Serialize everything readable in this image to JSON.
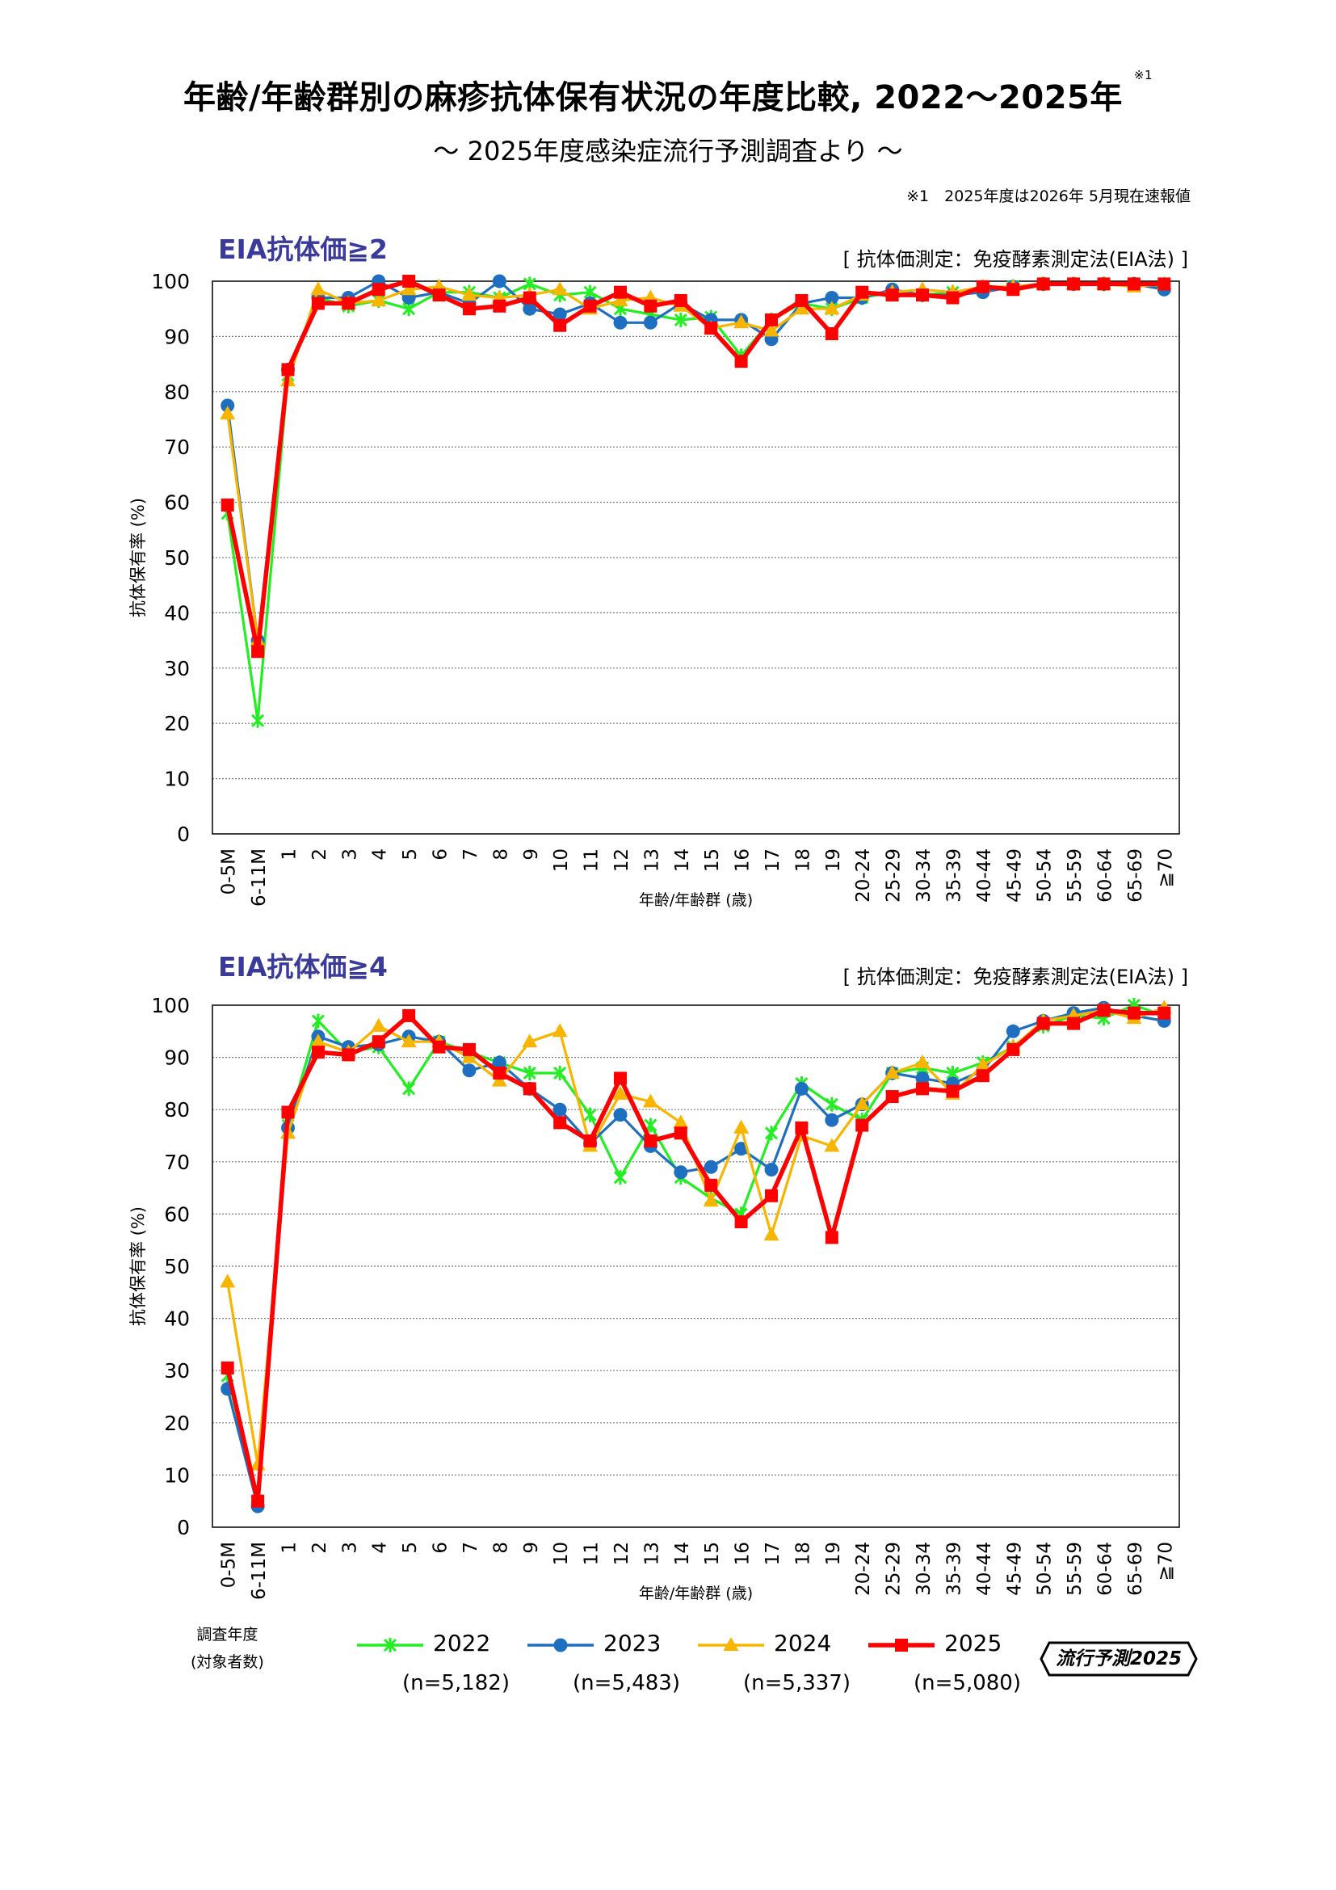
{
  "header": {
    "title": "年齢/年齢群別の麻疹抗体保有状況の年度比較, 2022～2025年",
    "title_note_mark": "※1",
    "subtitle": "～ 2025年度感染症流行予測調査より ～",
    "footnote": "※1　2025年度は2026年 5月現在速報値"
  },
  "legend": {
    "caption_line1": "調査年度",
    "caption_line2": "(対象者数)",
    "items": [
      {
        "name": "2022",
        "n": "(n=5,182)",
        "color": "#22ee22",
        "marker": "asterisk"
      },
      {
        "name": "2023",
        "n": "(n=5,483)",
        "color": "#1f6fc0",
        "marker": "circle"
      },
      {
        "name": "2024",
        "n": "(n=5,337)",
        "color": "#f7b500",
        "marker": "triangle"
      },
      {
        "name": "2025",
        "n": "(n=5,080)",
        "color": "#ff0000",
        "marker": "square"
      }
    ]
  },
  "logo": {
    "text": "流行予測2025"
  },
  "chart_data": [
    {
      "type": "line",
      "title": "EIA抗体価≧2",
      "method_note": "[ 抗体価測定：免疫酵素測定法(EIA法) ]",
      "xlabel": "年齢/年齢群 (歳)",
      "ylabel": "抗体保有率 (%)",
      "ylim": [
        0,
        100
      ],
      "yticks": [
        "0",
        "10",
        "20",
        "30",
        "40",
        "50",
        "60",
        "70",
        "80",
        "90",
        "100"
      ],
      "grid": "horizontal dotted",
      "categories": [
        "0-5M",
        "6-11M",
        "1",
        "2",
        "3",
        "4",
        "5",
        "6",
        "7",
        "8",
        "9",
        "10",
        "11",
        "12",
        "13",
        "14",
        "15",
        "16",
        "17",
        "18",
        "19",
        "20-24",
        "25-29",
        "30-34",
        "35-39",
        "40-44",
        "45-49",
        "50-54",
        "55-59",
        "60-64",
        "65-69",
        "≧70"
      ],
      "series": [
        {
          "name": "2022",
          "values": [
            58,
            20.5,
            83,
            97,
            95.5,
            96.5,
            95,
            98,
            98,
            97,
            99.5,
            97.5,
            98,
            95,
            94,
            93,
            93.5,
            86.5,
            93,
            96,
            95,
            97,
            98,
            97.5,
            98,
            98.5,
            99,
            99.5,
            99.5,
            99.5,
            99.5,
            99
          ]
        },
        {
          "name": "2023",
          "values": [
            77.5,
            35,
            84,
            97,
            97,
            100,
            97,
            98,
            96,
            100,
            95,
            94,
            96,
            92.5,
            92.5,
            96,
            93,
            93,
            89.5,
            96,
            97,
            97,
            98.5,
            97.5,
            97.5,
            98,
            99,
            99.5,
            99.5,
            99.5,
            99.5,
            98.5
          ]
        },
        {
          "name": "2024",
          "values": [
            76,
            35,
            82,
            98.5,
            96,
            96.5,
            98.5,
            99,
            97.5,
            97,
            97.5,
            98.5,
            95,
            96.5,
            97,
            95.5,
            91.5,
            92.5,
            91,
            95,
            95,
            97.5,
            98,
            98.5,
            98,
            99,
            99,
            99.5,
            99.5,
            99.5,
            99,
            99.5
          ]
        },
        {
          "name": "2025",
          "values": [
            59.5,
            33,
            84,
            96,
            96,
            98.5,
            100,
            97.5,
            95,
            95.5,
            97,
            92,
            95.5,
            98,
            95.5,
            96.5,
            91.5,
            85.5,
            93,
            96.5,
            90.5,
            98,
            97.5,
            97.5,
            97,
            99,
            98.5,
            99.5,
            99.5,
            99.5,
            99.5,
            99.5
          ]
        }
      ]
    },
    {
      "type": "line",
      "title": "EIA抗体価≧4",
      "method_note": "[ 抗体価測定：免疫酵素測定法(EIA法) ]",
      "xlabel": "年齢/年齢群 (歳)",
      "ylabel": "抗体保有率 (%)",
      "ylim": [
        0,
        100
      ],
      "yticks": [
        "0",
        "10",
        "20",
        "30",
        "40",
        "50",
        "60",
        "70",
        "80",
        "90",
        "100"
      ],
      "grid": "horizontal dotted",
      "categories": [
        "0-5M",
        "6-11M",
        "1",
        "2",
        "3",
        "4",
        "5",
        "6",
        "7",
        "8",
        "9",
        "10",
        "11",
        "12",
        "13",
        "14",
        "15",
        "16",
        "17",
        "18",
        "19",
        "20-24",
        "25-29",
        "30-34",
        "35-39",
        "40-44",
        "45-49",
        "50-54",
        "55-59",
        "60-64",
        "65-69",
        "≧70"
      ],
      "series": [
        {
          "name": "2022",
          "values": [
            29,
            5,
            77,
            97,
            91,
            92,
            84,
            93,
            91,
            89,
            87,
            87,
            79,
            67,
            77,
            67,
            63,
            60,
            75.5,
            85,
            81,
            78,
            87,
            88,
            87,
            89,
            92,
            96,
            98,
            97.5,
            100,
            98
          ]
        },
        {
          "name": "2023",
          "values": [
            26.5,
            4,
            76.5,
            94,
            92,
            92.5,
            94,
            93,
            87.5,
            89,
            84,
            80,
            73.5,
            79,
            73,
            68,
            69,
            72.5,
            68.5,
            84,
            78,
            81,
            87,
            86,
            85,
            87.5,
            95,
            97,
            98.5,
            99.5,
            98,
            97
          ]
        },
        {
          "name": "2024",
          "values": [
            47,
            12,
            75.5,
            93,
            91,
            96,
            93,
            93,
            90,
            85.5,
            93,
            95,
            73,
            83,
            81.5,
            77.5,
            62.5,
            76.5,
            56,
            75,
            73,
            81,
            87,
            89,
            83,
            88.5,
            92,
            97,
            98,
            99,
            97.5,
            99.5
          ]
        },
        {
          "name": "2025",
          "values": [
            30.5,
            5,
            79.5,
            91,
            90.5,
            93,
            98,
            92,
            91.5,
            87,
            84,
            77.5,
            74,
            86,
            74,
            75.5,
            65.5,
            58.5,
            63.5,
            76.5,
            55.5,
            77,
            82.5,
            84,
            83.5,
            86.5,
            91.5,
            96.5,
            96.5,
            99,
            98.5,
            98.5
          ]
        }
      ]
    }
  ]
}
